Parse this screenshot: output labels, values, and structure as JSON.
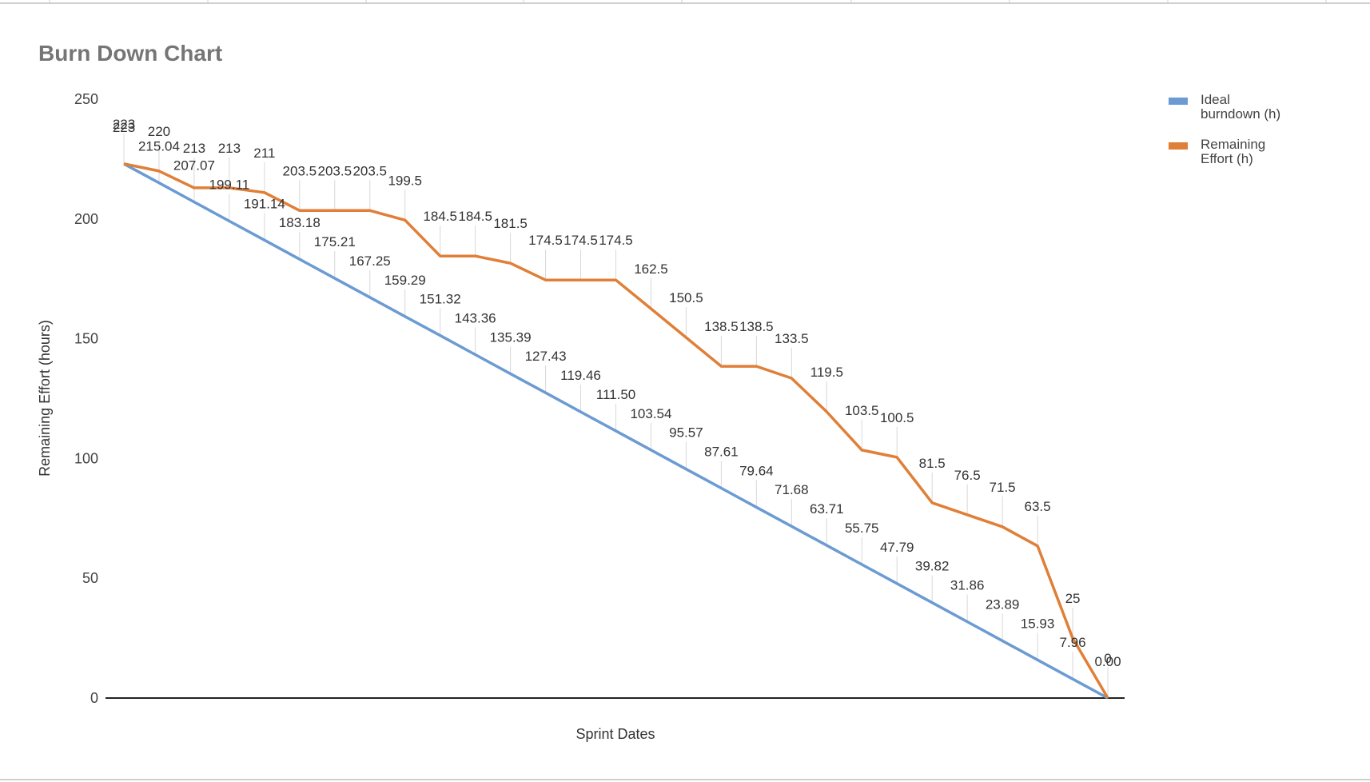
{
  "chart_data": {
    "type": "line",
    "title": "Burn Down Chart",
    "xlabel": "Sprint Dates",
    "ylabel": "Remaining Effort (hours)",
    "ylim": [
      0,
      250
    ],
    "yticks": [
      "0",
      "50",
      "100",
      "150",
      "200",
      "250"
    ],
    "grid": false,
    "legend_position": "top-right",
    "series": [
      {
        "name": "Ideal burndown (h)",
        "legend_lines": [
          "Ideal",
          "burndown (h)"
        ],
        "color": "#6b9bd2",
        "values": [
          223,
          215.04,
          207.07,
          199.11,
          191.14,
          183.18,
          175.21,
          167.25,
          159.29,
          151.32,
          143.36,
          135.39,
          127.43,
          119.46,
          111.5,
          103.54,
          95.57,
          87.61,
          79.64,
          71.68,
          63.71,
          55.75,
          47.79,
          39.82,
          31.86,
          23.89,
          15.93,
          7.96,
          0.0
        ],
        "labels": [
          "223",
          "215.04",
          "207.07",
          "199.11",
          "191.14",
          "183.18",
          "175.21",
          "167.25",
          "159.29",
          "151.32",
          "143.36",
          "135.39",
          "127.43",
          "119.46",
          "111.50",
          "103.54",
          "95.57",
          "87.61",
          "79.64",
          "71.68",
          "63.71",
          "55.75",
          "47.79",
          "39.82",
          "31.86",
          "23.89",
          "15.93",
          "7.96",
          "0.00"
        ]
      },
      {
        "name": "Remaining Effort (h)",
        "legend_lines": [
          "Remaining",
          "Effort (h)"
        ],
        "color": "#e07f38",
        "values": [
          223,
          220,
          213,
          213,
          211,
          203.5,
          203.5,
          203.5,
          199.5,
          184.5,
          184.5,
          181.5,
          174.5,
          174.5,
          174.5,
          162.5,
          150.5,
          138.5,
          138.5,
          133.5,
          119.5,
          103.5,
          100.5,
          81.5,
          76.5,
          71.5,
          63.5,
          25,
          0
        ],
        "labels": [
          "223",
          "220",
          "213",
          "213",
          "211",
          "203.5",
          "203.5",
          "203.5",
          "199.5",
          "184.5",
          "184.5",
          "181.5",
          "174.5",
          "174.5",
          "174.5",
          "162.5",
          "150.5",
          "138.5",
          "138.5",
          "133.5",
          "119.5",
          "103.5",
          "100.5",
          "81.5",
          "76.5",
          "71.5",
          "63.5",
          "25",
          "0"
        ]
      }
    ]
  }
}
